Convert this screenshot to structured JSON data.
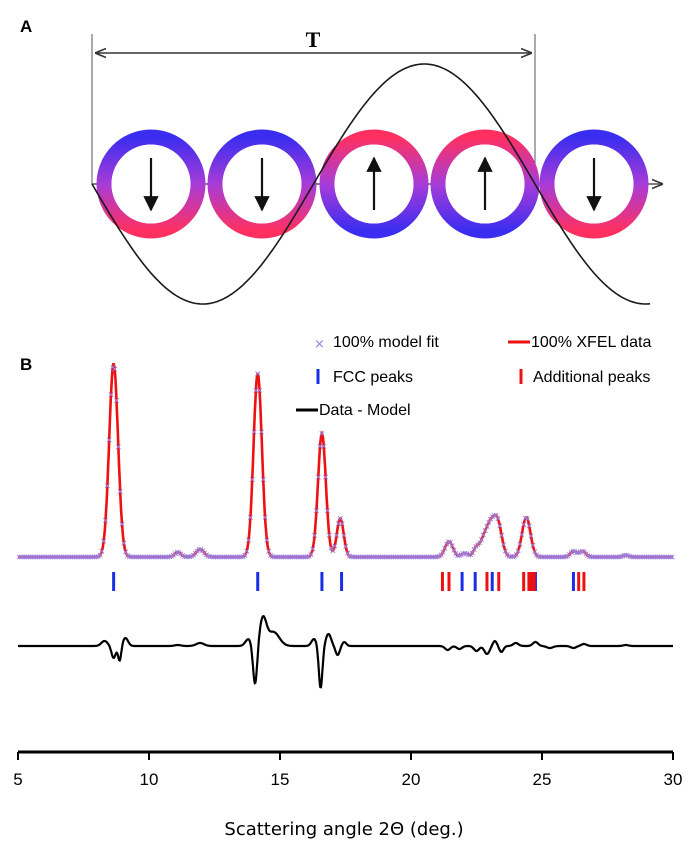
{
  "panels": {
    "a_label": "A",
    "b_label": "B"
  },
  "panel_a": {
    "period_label": "T",
    "arrows": [
      "down",
      "down",
      "up",
      "up",
      "down"
    ],
    "colors": {
      "ring_outer": "#3a2df0",
      "ring_inner": "#ff3060",
      "wave": "#1a1a1a"
    }
  },
  "chart_data": {
    "type": "line",
    "xlabel": "Scattering angle 2Θ (deg.)",
    "xlim": [
      5,
      30
    ],
    "x_ticks": [
      5,
      10,
      15,
      20,
      25,
      30
    ],
    "grid": false,
    "legend_position": "top",
    "legend": [
      {
        "label": "100%  model fit",
        "marker": "x",
        "color": "#9b7fe0"
      },
      {
        "label": "100% XFEL data",
        "marker": "line",
        "color": "#ee1111"
      },
      {
        "label": "FCC peaks",
        "marker": "bar",
        "color": "#1a2ee8"
      },
      {
        "label": "Additional peaks",
        "marker": "bar",
        "color": "#ee1111"
      },
      {
        "label": "Data - Model",
        "marker": "line",
        "color": "#000000"
      }
    ],
    "series": [
      {
        "name": "100% XFEL data",
        "peaks": [
          {
            "x": 8.65,
            "h": 1.0,
            "w": 0.17
          },
          {
            "x": 11.1,
            "h": 0.025,
            "w": 0.12
          },
          {
            "x": 11.95,
            "h": 0.04,
            "w": 0.15
          },
          {
            "x": 14.15,
            "h": 0.95,
            "w": 0.16
          },
          {
            "x": 16.6,
            "h": 0.64,
            "w": 0.15
          },
          {
            "x": 17.3,
            "h": 0.2,
            "w": 0.13
          },
          {
            "x": 21.45,
            "h": 0.08,
            "w": 0.15
          },
          {
            "x": 22.05,
            "h": 0.02,
            "w": 0.12
          },
          {
            "x": 22.5,
            "h": 0.05,
            "w": 0.12
          },
          {
            "x": 22.75,
            "h": 0.06,
            "w": 0.12
          },
          {
            "x": 23.0,
            "h": 0.15,
            "w": 0.16
          },
          {
            "x": 23.3,
            "h": 0.18,
            "w": 0.16
          },
          {
            "x": 24.4,
            "h": 0.205,
            "w": 0.16
          },
          {
            "x": 26.2,
            "h": 0.03,
            "w": 0.12
          },
          {
            "x": 26.55,
            "h": 0.03,
            "w": 0.12
          },
          {
            "x": 28.2,
            "h": 0.01,
            "w": 0.1
          }
        ]
      },
      {
        "name": "Data - Model",
        "features": [
          {
            "x": 8.3,
            "a": 0.05,
            "w": 0.12
          },
          {
            "x": 8.65,
            "a": -0.12,
            "w": 0.08
          },
          {
            "x": 8.88,
            "a": -0.15,
            "w": 0.06
          },
          {
            "x": 9.1,
            "a": 0.08,
            "w": 0.1
          },
          {
            "x": 11.1,
            "a": 0.01,
            "w": 0.12
          },
          {
            "x": 11.95,
            "a": 0.03,
            "w": 0.15
          },
          {
            "x": 13.8,
            "a": 0.07,
            "w": 0.12
          },
          {
            "x": 14.05,
            "a": -0.4,
            "w": 0.08
          },
          {
            "x": 14.35,
            "a": 0.27,
            "w": 0.13
          },
          {
            "x": 14.75,
            "a": 0.14,
            "w": 0.22
          },
          {
            "x": 16.3,
            "a": 0.07,
            "w": 0.1
          },
          {
            "x": 16.55,
            "a": -0.42,
            "w": 0.07
          },
          {
            "x": 16.85,
            "a": 0.12,
            "w": 0.1
          },
          {
            "x": 17.2,
            "a": -0.09,
            "w": 0.08
          },
          {
            "x": 17.45,
            "a": 0.04,
            "w": 0.08
          },
          {
            "x": 21.4,
            "a": -0.04,
            "w": 0.1
          },
          {
            "x": 21.85,
            "a": -0.03,
            "w": 0.1
          },
          {
            "x": 22.5,
            "a": -0.05,
            "w": 0.1
          },
          {
            "x": 22.9,
            "a": -0.08,
            "w": 0.1
          },
          {
            "x": 23.2,
            "a": 0.05,
            "w": 0.08
          },
          {
            "x": 23.45,
            "a": -0.06,
            "w": 0.08
          },
          {
            "x": 24.0,
            "a": 0.03,
            "w": 0.1
          },
          {
            "x": 24.75,
            "a": 0.04,
            "w": 0.1
          },
          {
            "x": 25.3,
            "a": -0.02,
            "w": 0.12
          },
          {
            "x": 26.2,
            "a": -0.02,
            "w": 0.1
          },
          {
            "x": 26.6,
            "a": 0.02,
            "w": 0.1
          },
          {
            "x": 28.2,
            "a": 0.01,
            "w": 0.1
          }
        ]
      }
    ],
    "fcc_peaks": [
      8.65,
      14.15,
      16.6,
      17.35,
      21.95,
      22.45,
      23.1,
      24.75,
      26.2
    ],
    "additional_peaks": [
      21.2,
      21.45,
      22.9,
      23.35,
      24.3,
      24.5,
      24.6,
      24.7,
      26.4,
      26.6
    ]
  }
}
